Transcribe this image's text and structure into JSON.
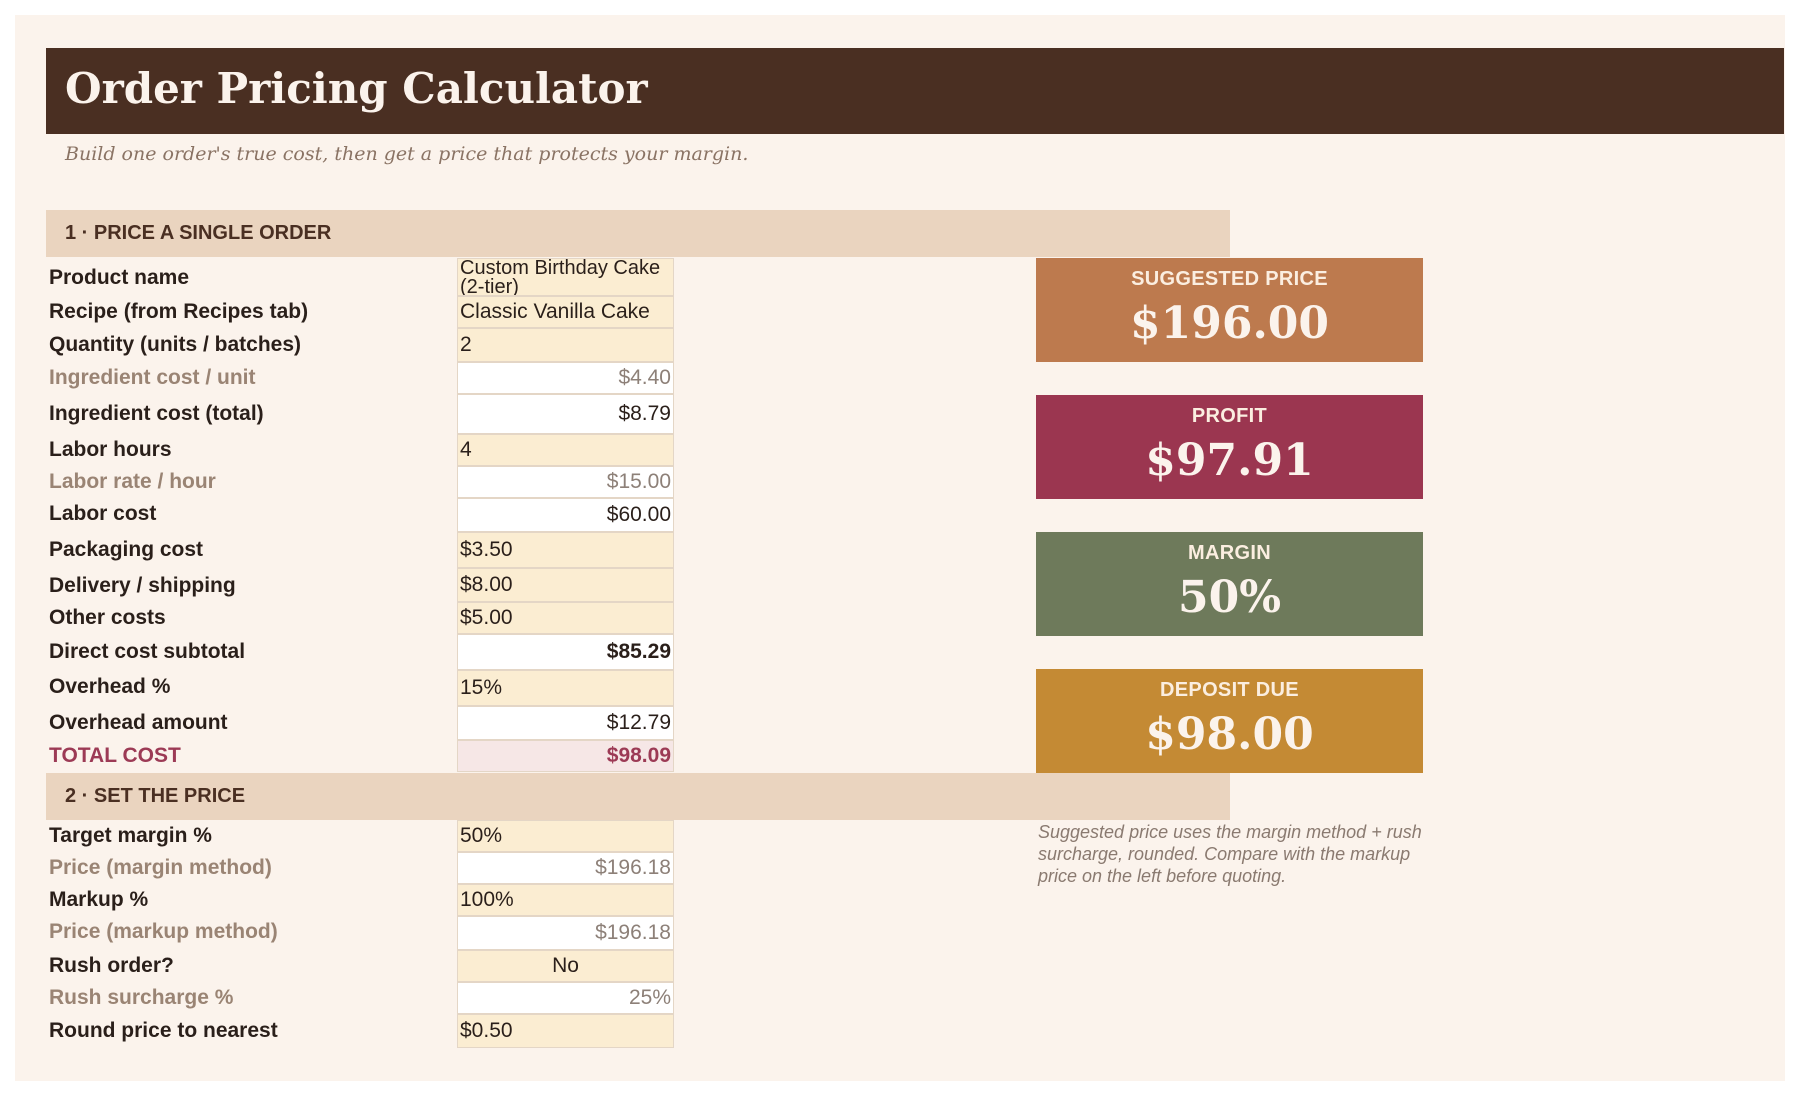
{
  "header": {
    "title": "Order Pricing Calculator",
    "subtitle": "Build one order's true cost, then get a price that protects your margin."
  },
  "section1": {
    "title": "1 · PRICE A SINGLE ORDER",
    "rows": [
      {
        "label": "Product name",
        "value": "Custom Birthday Cake (2-tier)",
        "kind": "input"
      },
      {
        "label": "Recipe (from Recipes tab)",
        "value": "Classic Vanilla Cake",
        "kind": "input"
      },
      {
        "label": "Quantity (units / batches)",
        "value": "2",
        "kind": "input"
      },
      {
        "label": "Ingredient cost / unit",
        "value": "$4.40",
        "kind": "calc-muted"
      },
      {
        "label": "Ingredient cost (total)",
        "value": "$8.79",
        "kind": "calc"
      },
      {
        "label": "Labor hours",
        "value": "4",
        "kind": "input"
      },
      {
        "label": "Labor rate / hour",
        "value": "$15.00",
        "kind": "calc-muted"
      },
      {
        "label": "Labor cost",
        "value": "$60.00",
        "kind": "calc"
      },
      {
        "label": "Packaging cost",
        "value": "$3.50",
        "kind": "input"
      },
      {
        "label": "Delivery / shipping",
        "value": "$8.00",
        "kind": "input"
      },
      {
        "label": "Other costs",
        "value": "$5.00",
        "kind": "input"
      },
      {
        "label": "Direct cost subtotal",
        "value": "$85.29",
        "kind": "calc-bold"
      },
      {
        "label": "Overhead %",
        "value": "15%",
        "kind": "input"
      },
      {
        "label": "Overhead amount",
        "value": "$12.79",
        "kind": "calc"
      },
      {
        "label": "TOTAL COST",
        "value": "$98.09",
        "kind": "total"
      }
    ]
  },
  "section2": {
    "title": "2 · SET THE PRICE",
    "rows": [
      {
        "label": "Target margin %",
        "value": "50%",
        "kind": "input"
      },
      {
        "label": "Price (margin method)",
        "value": "$196.18",
        "kind": "calc-muted"
      },
      {
        "label": "Markup %",
        "value": "100%",
        "kind": "input"
      },
      {
        "label": "Price (markup method)",
        "value": "$196.18",
        "kind": "calc-muted"
      },
      {
        "label": "Rush order?",
        "value": "No",
        "kind": "input-center"
      },
      {
        "label": "Rush surcharge %",
        "value": "25%",
        "kind": "calc-muted"
      },
      {
        "label": "Round price to nearest",
        "value": "$0.50",
        "kind": "input"
      }
    ]
  },
  "cards": {
    "suggested_price": {
      "label": "SUGGESTED PRICE",
      "value": "$196.00",
      "color": "#bd7a4e"
    },
    "profit": {
      "label": "PROFIT",
      "value": "$97.91",
      "color": "#9b3650"
    },
    "margin": {
      "label": "MARGIN",
      "value": "50%",
      "color": "#6e7a5b"
    },
    "deposit_due": {
      "label": "DEPOSIT DUE",
      "value": "$98.00",
      "color": "#c48a34"
    }
  },
  "note": "Suggested price uses the margin method + rush surcharge, rounded. Compare with the markup price on the left before quoting."
}
